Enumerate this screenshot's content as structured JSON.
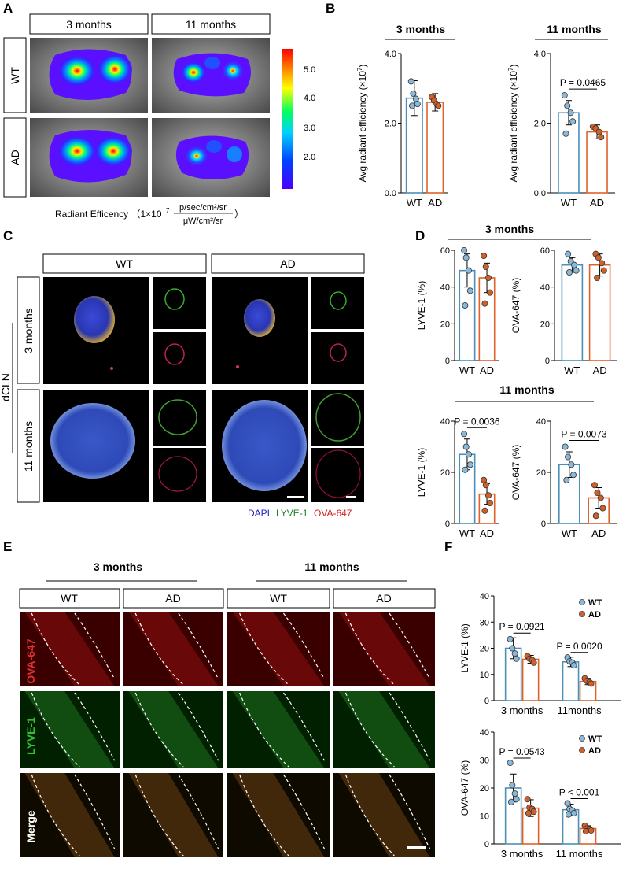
{
  "panel_labels": {
    "a": "A",
    "b": "B",
    "c": "C",
    "d": "D",
    "e": "E",
    "f": "F"
  },
  "panel_a": {
    "col_headers": [
      "3 months",
      "11 months"
    ],
    "row_labels": [
      "WT",
      "AD"
    ],
    "colorbar_ticks": [
      "5.0",
      "4.0",
      "3.0",
      "2.0"
    ],
    "caption_prefix": "Radiant Efficency （1×10",
    "caption_exp": "7",
    "caption_num": "p/sec/cm²/sr",
    "caption_den": "μW/cm²/sr",
    "caption_close": "）",
    "colors": {
      "low": "#2a00ff",
      "mid": "#00ff66",
      "high": "#ff0000"
    }
  },
  "colors": {
    "wt": "#4a90b8",
    "ad": "#e0622a",
    "wt_dot": "#8ab8d8",
    "ad_dot": "#d0602a"
  },
  "panel_c": {
    "col_headers": [
      "WT",
      "AD"
    ],
    "row_labels": [
      "3 months",
      "11 months"
    ],
    "side_label": "dCLN",
    "legend": {
      "dapi": "DAPI",
      "lyve": "LYVE-1",
      "ova": "OVA-647"
    }
  },
  "panel_d": {
    "group_title_3": "3 months",
    "group_title_11": "11 months"
  },
  "panel_e": {
    "group_headers": [
      "3 months",
      "11 months"
    ],
    "col_headers": [
      "WT",
      "AD",
      "WT",
      "AD"
    ],
    "row_labels": [
      "OVA-647",
      "LYVE-1",
      "Merge"
    ]
  },
  "chart_data": [
    {
      "id": "B1",
      "type": "bar",
      "title": "3 months",
      "ylabel": "Avg radiant efficiency (×10",
      "ylabel_exp": "7",
      "ylabel_close": ")",
      "categories": [
        "WT",
        "AD"
      ],
      "values": [
        2.72,
        2.6
      ],
      "errors": [
        0.5,
        0.25
      ],
      "points": [
        [
          3.2,
          2.85,
          2.7,
          2.55,
          2.5
        ],
        [
          2.75,
          2.65,
          2.55,
          2.5
        ]
      ],
      "ylim": [
        0,
        4.0
      ],
      "yticks": [
        "0.0",
        "2.0",
        "4.0"
      ],
      "pvalue": ""
    },
    {
      "id": "B2",
      "type": "bar",
      "title": "11 months",
      "ylabel": "Avg radiant efficiency (×10",
      "ylabel_exp": "7",
      "ylabel_close": ")",
      "categories": [
        "WT",
        "AD"
      ],
      "values": [
        2.3,
        1.75
      ],
      "errors": [
        0.35,
        0.2
      ],
      "points": [
        [
          2.8,
          2.5,
          2.3,
          2.05,
          1.7
        ],
        [
          1.9,
          1.85,
          1.75,
          1.6
        ]
      ],
      "ylim": [
        0,
        4.0
      ],
      "yticks": [
        "0.0",
        "2.0",
        "4.0"
      ],
      "pvalue": "P = 0.0465"
    },
    {
      "id": "D1",
      "type": "bar",
      "ylabel": "LYVE-1 (%)",
      "categories": [
        "WT",
        "AD"
      ],
      "values": [
        49,
        45
      ],
      "errors": [
        9,
        8
      ],
      "points": [
        [
          60,
          56,
          49,
          38,
          30
        ],
        [
          57,
          51,
          45,
          37,
          31
        ]
      ],
      "ylim": [
        0,
        60
      ],
      "yticks": [
        "0",
        "20",
        "40",
        "60"
      ],
      "pvalue": ""
    },
    {
      "id": "D2",
      "type": "bar",
      "ylabel": "OVA-647 (%)",
      "categories": [
        "WT",
        "AD"
      ],
      "values": [
        52,
        52
      ],
      "errors": [
        4,
        6
      ],
      "points": [
        [
          58,
          54,
          52,
          49,
          48
        ],
        [
          58,
          56,
          53,
          49,
          45
        ]
      ],
      "ylim": [
        0,
        60
      ],
      "yticks": [
        "0",
        "20",
        "40",
        "60"
      ],
      "pvalue": ""
    },
    {
      "id": "D3",
      "type": "bar",
      "ylabel": "LYVE-1 (%)",
      "categories": [
        "WT",
        "AD"
      ],
      "values": [
        27,
        11.5
      ],
      "errors": [
        6,
        4
      ],
      "points": [
        [
          35,
          30,
          27,
          23,
          21
        ],
        [
          17,
          15,
          11,
          8,
          5
        ]
      ],
      "ylim": [
        0,
        40
      ],
      "yticks": [
        "0",
        "20",
        "40"
      ],
      "pvalue": "P = 0.0036"
    },
    {
      "id": "D4",
      "type": "bar",
      "ylabel": "OVA-647 (%)",
      "categories": [
        "WT",
        "AD"
      ],
      "values": [
        23,
        10
      ],
      "errors": [
        5,
        4
      ],
      "points": [
        [
          30,
          26,
          23,
          19,
          17
        ],
        [
          15,
          12,
          10,
          6,
          3
        ]
      ],
      "ylim": [
        0,
        40
      ],
      "yticks": [
        "0",
        "20",
        "40"
      ],
      "pvalue": "P = 0.0073"
    },
    {
      "id": "F1",
      "type": "bar",
      "ylabel": "LYVE-1 (%)",
      "categories": [
        "3 months",
        "11months"
      ],
      "series": [
        {
          "name": "WT",
          "values": [
            20,
            14.8
          ],
          "errors": [
            4,
            1.8
          ],
          "points": [
            [
              23.5,
              20,
              18,
              16
            ],
            [
              16.5,
              15,
              14.5,
              13.5
            ]
          ]
        },
        {
          "name": "AD",
          "values": [
            15.8,
            7.3
          ],
          "errors": [
            1.5,
            1.2
          ],
          "points": [
            [
              17,
              16,
              15.5,
              14.5
            ],
            [
              8.5,
              7.5,
              7,
              6.5
            ]
          ]
        }
      ],
      "ylim": [
        0,
        40
      ],
      "yticks": [
        "0",
        "10",
        "20",
        "30",
        "40"
      ],
      "pvalues": [
        "P = 0.0921",
        "P = 0.0020"
      ],
      "legend": [
        "WT",
        "AD"
      ],
      "legend_position": "top-right"
    },
    {
      "id": "F2",
      "type": "bar",
      "ylabel": "OVA-647 (%)",
      "categories": [
        "3 months",
        "11 months"
      ],
      "series": [
        {
          "name": "WT",
          "values": [
            20,
            12.2
          ],
          "errors": [
            5,
            2
          ],
          "points": [
            [
              29,
              21,
              18,
              16,
              15
            ],
            [
              14.5,
              12.5,
              12,
              11,
              10.5
            ]
          ]
        },
        {
          "name": "AD",
          "values": [
            12.8,
            5.5
          ],
          "errors": [
            3,
            1
          ],
          "points": [
            [
              16,
              13,
              12.5,
              11.5,
              11
            ],
            [
              6.5,
              5.5,
              5.3,
              4.8,
              4.5
            ]
          ]
        }
      ],
      "ylim": [
        0,
        40
      ],
      "yticks": [
        "0",
        "10",
        "20",
        "30",
        "40"
      ],
      "pvalues": [
        "P = 0.0543",
        "P < 0.001"
      ],
      "legend": [
        "WT",
        "AD"
      ],
      "legend_position": "top-right"
    }
  ]
}
